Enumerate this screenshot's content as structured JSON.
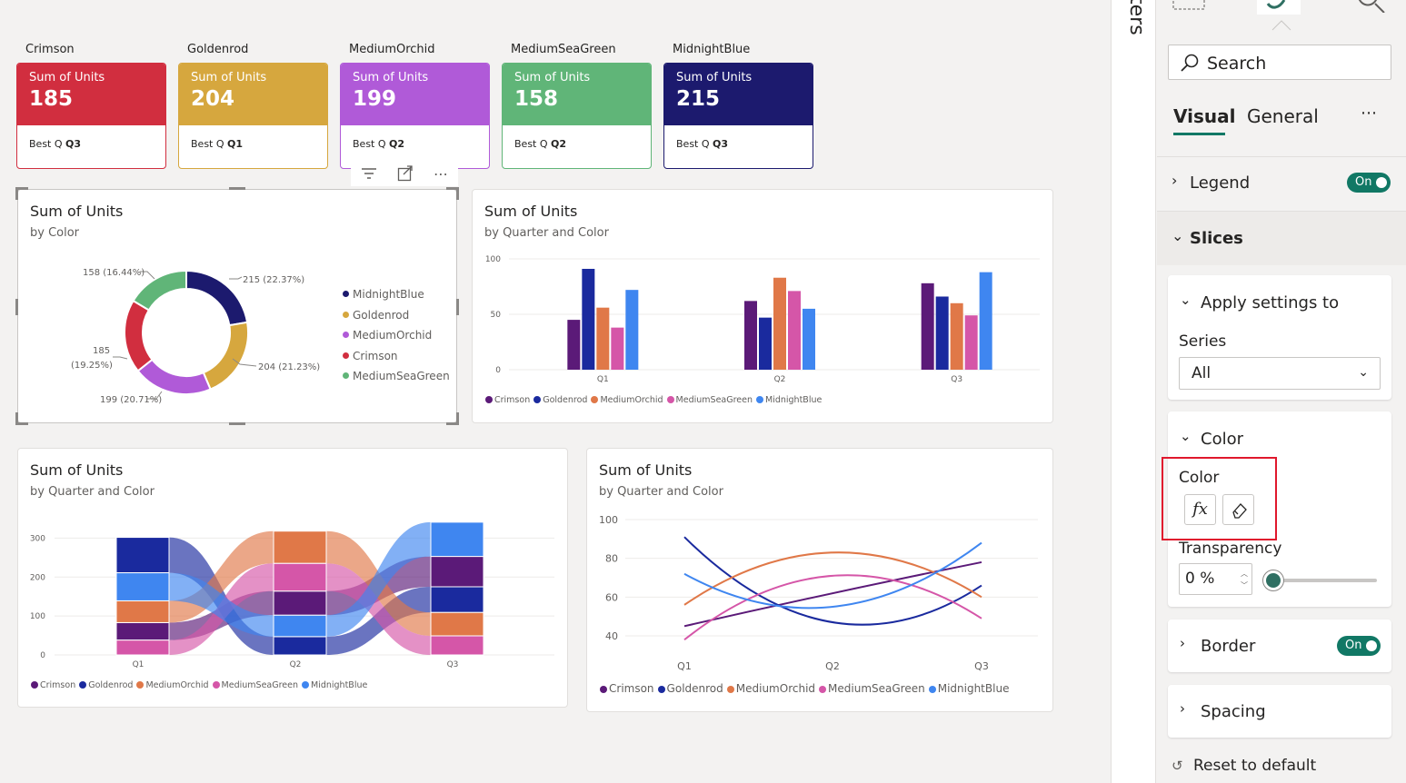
{
  "cards": [
    {
      "name": "Crimson",
      "label": "Sum of Units",
      "value": "185",
      "best_prefix": "Best Q",
      "best": "Q3",
      "color": "#d12e3f",
      "border": "#d12e3f"
    },
    {
      "name": "Goldenrod",
      "label": "Sum of Units",
      "value": "204",
      "best_prefix": "Best Q",
      "best": "Q1",
      "color": "#d6a73e",
      "border": "#d6a73e"
    },
    {
      "name": "MediumOrchid",
      "label": "Sum of Units",
      "value": "199",
      "best_prefix": "Best Q",
      "best": "Q2",
      "color": "#b05ad8",
      "border": "#b05ad8"
    },
    {
      "name": "MediumSeaGreen",
      "label": "Sum of Units",
      "value": "158",
      "best_prefix": "Best Q",
      "best": "Q2",
      "color": "#60b578",
      "border": "#60b578"
    },
    {
      "name": "MidnightBlue",
      "label": "Sum of Units",
      "value": "215",
      "best_prefix": "Best Q",
      "best": "Q3",
      "color": "#1c1a6e",
      "border": "#1c1a6e"
    }
  ],
  "visual_toolbar": {
    "filter_icon": "filter-icon",
    "focus_icon": "focus-mode-icon",
    "more_icon": "more-options-icon",
    "more": "⋯"
  },
  "donut": {
    "title": "Sum of Units",
    "subtitle": "by Color",
    "labels": {
      "midnightblue": "215 (22.37%)",
      "goldenrod": "204 (21.23%)",
      "orchid": "199 (20.71%)",
      "crimson_1": "185",
      "crimson_2": "(19.25%)",
      "seagreen": "158 (16.44%)"
    },
    "legend": [
      "MidnightBlue",
      "Goldenrod",
      "MediumOrchid",
      "Crimson",
      "MediumSeaGreen"
    ]
  },
  "bar": {
    "title": "Sum of Units",
    "subtitle": "by Quarter and Color",
    "ticks": [
      "100",
      "50",
      "0"
    ],
    "quarters": [
      "Q1",
      "Q2",
      "Q3"
    ],
    "legend": [
      "Crimson",
      "Goldenrod",
      "MediumOrchid",
      "MediumSeaGreen",
      "MidnightBlue"
    ]
  },
  "ribbon": {
    "title": "Sum of Units",
    "subtitle": "by Quarter and Color",
    "ticks": [
      "300",
      "200",
      "100",
      "0"
    ],
    "quarters": [
      "Q1",
      "Q2",
      "Q3"
    ],
    "legend": [
      "Crimson",
      "Goldenrod",
      "MediumOrchid",
      "MediumSeaGreen",
      "MidnightBlue"
    ]
  },
  "line": {
    "title": "Sum of Units",
    "subtitle": "by Quarter and Color",
    "ticks": [
      "100",
      "80",
      "60",
      "40"
    ],
    "quarters": [
      "Q1",
      "Q2",
      "Q3"
    ],
    "legend": [
      "Crimson",
      "Goldenrod",
      "MediumOrchid",
      "MediumSeaGreen",
      "MidnightBlue"
    ]
  },
  "chart_data": [
    {
      "type": "bar",
      "categories": [
        "Q1",
        "Q2",
        "Q3"
      ],
      "ylim": [
        0,
        100
      ],
      "series": [
        {
          "name": "Crimson",
          "values": [
            45,
            62,
            78
          ],
          "color": "#5b1a78"
        },
        {
          "name": "Goldenrod",
          "values": [
            91,
            47,
            66
          ],
          "color": "#1a2a9e"
        },
        {
          "name": "MediumOrchid",
          "values": [
            56,
            83,
            60
          ],
          "color": "#e07848"
        },
        {
          "name": "MediumSeaGreen",
          "values": [
            38,
            71,
            49
          ],
          "color": "#d556a8"
        },
        {
          "name": "MidnightBlue",
          "values": [
            72,
            55,
            88
          ],
          "color": "#3f86f0"
        }
      ]
    },
    {
      "type": "pie",
      "categories": [
        "MidnightBlue",
        "Goldenrod",
        "MediumOrchid",
        "Crimson",
        "MediumSeaGreen"
      ],
      "values": [
        215,
        204,
        199,
        185,
        158
      ],
      "colors": [
        "#1c1a6e",
        "#d6a73e",
        "#b05ad8",
        "#d12e3f",
        "#60b578"
      ]
    },
    {
      "type": "line",
      "categories": [
        "Q1",
        "Q2",
        "Q3"
      ],
      "ylim": [
        40,
        100
      ],
      "series": [
        {
          "name": "Crimson",
          "values": [
            45,
            62,
            78
          ],
          "color": "#5b1a78"
        },
        {
          "name": "Goldenrod",
          "values": [
            91,
            47,
            66
          ],
          "color": "#1a2a9e"
        },
        {
          "name": "MediumOrchid",
          "values": [
            56,
            83,
            60
          ],
          "color": "#e07848"
        },
        {
          "name": "MediumSeaGreen",
          "values": [
            38,
            71,
            49
          ],
          "color": "#d556a8"
        },
        {
          "name": "MidnightBlue",
          "values": [
            72,
            55,
            88
          ],
          "color": "#3f86f0"
        }
      ]
    }
  ],
  "filters_label": "ters",
  "pane": {
    "search_placeholder": "Search",
    "tabs": [
      "Visual",
      "General"
    ],
    "more": "⋯",
    "legend": {
      "title": "Legend",
      "toggle": "On"
    },
    "slices": {
      "title": "Slices"
    },
    "apply": {
      "title": "Apply settings to",
      "series_label": "Series",
      "series_value": "All"
    },
    "color": {
      "title": "Color",
      "label": "Color",
      "fx": "fx",
      "transparency_label": "Transparency",
      "transparency_value": "0",
      "unit": "%",
      "transparency_percent": 0
    },
    "border": {
      "title": "Border",
      "toggle": "On"
    },
    "spacing": {
      "title": "Spacing"
    },
    "reset": "Reset to default"
  }
}
